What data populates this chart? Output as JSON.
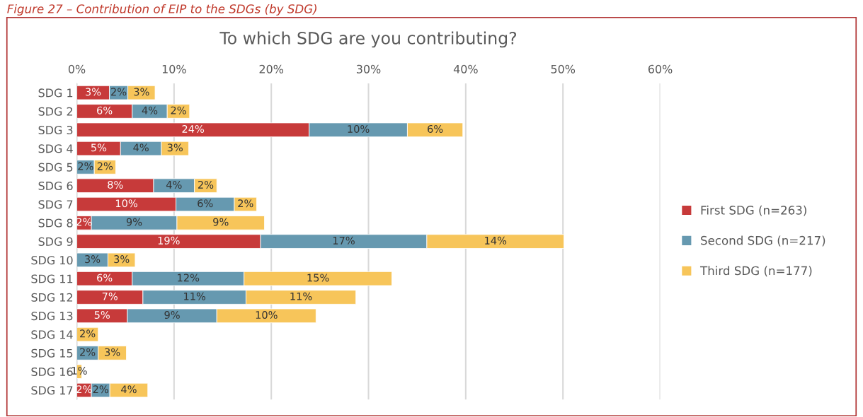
{
  "chart_data": {
    "type": "bar",
    "orientation": "horizontal",
    "stacked": true,
    "title": "To which SDG are you contributing?",
    "annotations": [
      "Figure 27 – Contribution of EIP to the SDGs (by SDG)"
    ],
    "categories": [
      "SDG 1",
      "SDG 2",
      "SDG 3",
      "SDG 4",
      "SDG 5",
      "SDG 6",
      "SDG 7",
      "SDG 8",
      "SDG 9",
      "SDG 10",
      "SDG 11",
      "SDG 12",
      "SDG 13",
      "SDG 14",
      "SDG 15",
      "SDG 16",
      "SDG 17"
    ],
    "series": [
      {
        "name": "First SDG (n=263)",
        "color": "#c73a3a",
        "values": [
          3.35,
          5.7,
          23.9,
          4.5,
          null,
          7.9,
          10.2,
          1.5,
          18.9,
          null,
          5.7,
          6.8,
          5.2,
          null,
          null,
          null,
          1.5
        ],
        "value_labels": [
          "3%",
          "6%",
          "24%",
          "5%",
          null,
          "8%",
          "10%",
          "2%",
          "19%",
          null,
          "6%",
          "7%",
          "5%",
          null,
          null,
          null,
          "2%"
        ]
      },
      {
        "name": "Second SDG (n=217)",
        "color": "#6699b0",
        "values": [
          1.9,
          3.6,
          10.1,
          4.2,
          1.8,
          4.2,
          6.0,
          8.8,
          17.1,
          3.2,
          11.5,
          10.6,
          9.2,
          null,
          2.2,
          null,
          1.9
        ],
        "value_labels": [
          "2%",
          "4%",
          "10%",
          "4%",
          "2%",
          "4%",
          "6%",
          "9%",
          "17%",
          "3%",
          "12%",
          "11%",
          "9%",
          null,
          "2%",
          null,
          "2%"
        ]
      },
      {
        "name": "Third SDG (n=177)",
        "color": "#f7c55a",
        "values": [
          2.8,
          2.3,
          5.7,
          2.8,
          2.2,
          2.3,
          2.3,
          9.0,
          14.1,
          2.8,
          15.2,
          11.3,
          10.2,
          2.2,
          2.9,
          0.5,
          3.9
        ],
        "value_labels": [
          "3%",
          "2%",
          "6%",
          "3%",
          "2%",
          "2%",
          "2%",
          "9%",
          "14%",
          "3%",
          "15%",
          "11%",
          "10%",
          "2%",
          "3%",
          "1%",
          "4%"
        ]
      }
    ],
    "xlim": [
      0,
      60
    ],
    "xticks": [
      {
        "value": 0,
        "label": "0%"
      },
      {
        "value": 10,
        "label": "10%"
      },
      {
        "value": 20,
        "label": "20%"
      },
      {
        "value": 30,
        "label": "30%"
      },
      {
        "value": 40,
        "label": "40%"
      },
      {
        "value": 50,
        "label": "50%"
      },
      {
        "value": 60,
        "label": "60%"
      }
    ],
    "grid": "x",
    "legend": "right"
  }
}
